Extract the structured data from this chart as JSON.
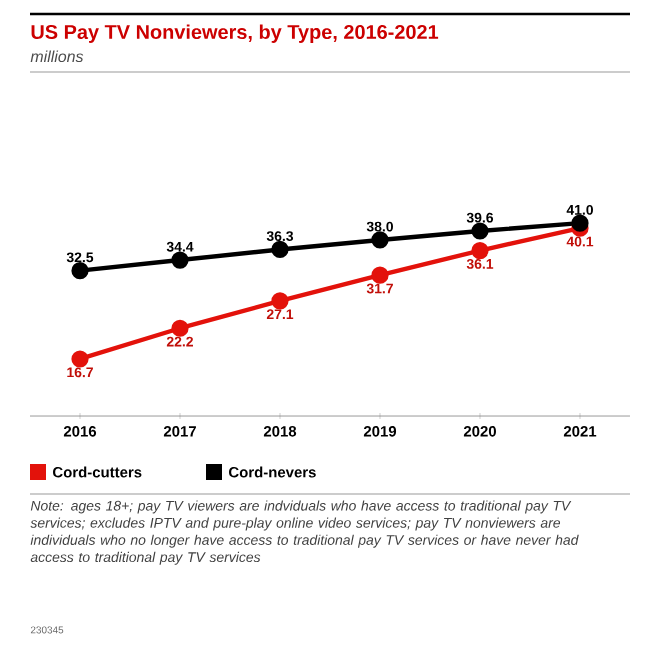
{
  "chart_data": {
    "type": "line",
    "title": "US Pay TV Nonviewers, by Type, 2016-2021",
    "subtitle": "millions",
    "categories": [
      "2016",
      "2017",
      "2018",
      "2019",
      "2020",
      "2021"
    ],
    "series": [
      {
        "name": "Cord-cutters",
        "color": "#e3120b",
        "values": [
          16.7,
          22.2,
          27.1,
          31.7,
          36.1,
          40.1
        ],
        "value_labels": [
          "16.7",
          "22.2",
          "27.1",
          "31.7",
          "36.1",
          "40.1"
        ]
      },
      {
        "name": "Cord-nevers",
        "color": "#000000",
        "values": [
          32.5,
          34.4,
          36.3,
          38.0,
          39.6,
          41.0
        ],
        "value_labels": [
          "32.5",
          "34.4",
          "36.3",
          "38.0",
          "39.6",
          "41.0"
        ]
      }
    ],
    "marker": "circle",
    "legend": "bottom",
    "annotations": [
      "Note: ages 18+; pay TV viewers are indviduals who have access to traditional pay TV services; excludes IPTV and pure-play online video services; pay TV nonviewers are individuals who no longer have access to traditional pay TV services or have never had access to traditional pay TV services",
      "230345"
    ]
  }
}
